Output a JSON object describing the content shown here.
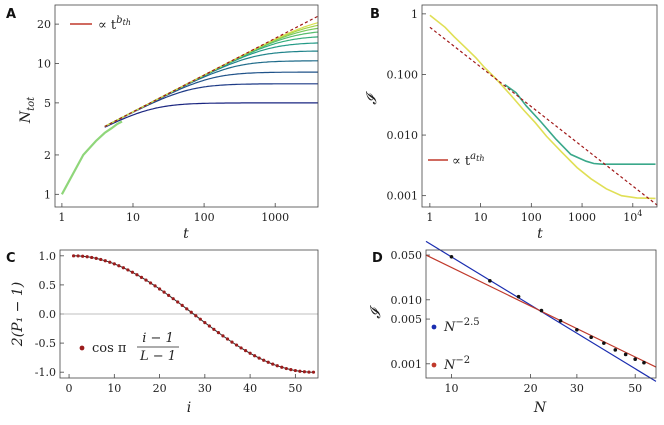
{
  "chart_data": [
    {
      "panel": "A",
      "type": "line",
      "xlabel": "t",
      "ylabel": "N_tot",
      "xscale": "log",
      "yscale": "log",
      "xlim": [
        0.8,
        4000
      ],
      "ylim": [
        0.8,
        28
      ],
      "xticks": [
        {
          "v": 1,
          "label": "1"
        },
        {
          "v": 10,
          "label": "10"
        },
        {
          "v": 100,
          "label": "100"
        },
        {
          "v": 1000,
          "label": "1000"
        }
      ],
      "yticks": [
        {
          "v": 1,
          "label": "1"
        },
        {
          "v": 2,
          "label": "2"
        },
        {
          "v": 5,
          "label": "5"
        },
        {
          "v": 10,
          "label": "10"
        },
        {
          "v": 20,
          "label": "20"
        }
      ],
      "legend": {
        "position": "top-left",
        "prefix": "∝ t",
        "exponent": "b",
        "exponent_sub": "th",
        "color": "#c0392b"
      },
      "fit": {
        "label": "∝ t^b_th",
        "color": "#a01818",
        "dashed": true,
        "x": [
          4,
          4000
        ],
        "y": [
          3.3,
          23
        ]
      },
      "init_curve": {
        "color": "#8fd67a",
        "x": [
          1,
          2,
          3,
          4,
          5,
          6,
          7
        ],
        "y": [
          1.0,
          2.0,
          2.55,
          2.95,
          3.2,
          3.45,
          3.6
        ]
      },
      "series": [
        {
          "name": "saturation 5.0",
          "color": "#1a2580",
          "plateau": 5.0
        },
        {
          "name": "saturation 7.0",
          "color": "#1d3a86",
          "plateau": 7.0
        },
        {
          "name": "saturation 8.6",
          "color": "#1f5289",
          "plateau": 8.6
        },
        {
          "name": "saturation 10.5",
          "color": "#1f6b8a",
          "plateau": 10.5
        },
        {
          "name": "saturation 12.5",
          "color": "#1f838a",
          "plateau": 12.5
        },
        {
          "name": "saturation 14.5",
          "color": "#239a86",
          "plateau": 14.5
        },
        {
          "name": "saturation 16.3",
          "color": "#35ad7b",
          "plateau": 16.3
        },
        {
          "name": "saturation 18.0",
          "color": "#56bd6d",
          "plateau": 18.0
        },
        {
          "name": "saturation 19.6",
          "color": "#7bca5c",
          "plateau": 19.6
        },
        {
          "name": "saturation 21.2",
          "color": "#a3d44b",
          "plateau": 21.2
        },
        {
          "name": "saturation 23.0",
          "color": "#d8df4e",
          "plateau": 23.0
        }
      ]
    },
    {
      "panel": "B",
      "type": "line",
      "xlabel": "t",
      "ylabel": "𝓘",
      "xscale": "log",
      "yscale": "log",
      "xlim": [
        0.7,
        30000
      ],
      "ylim": [
        0.00065,
        1.4
      ],
      "xticks": [
        {
          "v": 1,
          "label": "1"
        },
        {
          "v": 10,
          "label": "10"
        },
        {
          "v": 100,
          "label": "100"
        },
        {
          "v": 1000,
          "label": "1000"
        },
        {
          "v": 10000,
          "label": "10",
          "sup": "4"
        }
      ],
      "yticks": [
        {
          "v": 1,
          "label": "1"
        },
        {
          "v": 0.1,
          "label": "0.100"
        },
        {
          "v": 0.01,
          "label": "0.010"
        },
        {
          "v": 0.001,
          "label": "0.001"
        }
      ],
      "legend": {
        "position": "bottom-left",
        "prefix": "∝ t",
        "exponent": "a",
        "exponent_sub": "th",
        "color": "#c0392b"
      },
      "fit": {
        "color": "#a01818",
        "dashed": true,
        "x": [
          1,
          30000
        ],
        "y": [
          0.6,
          0.0007
        ]
      },
      "series": [
        {
          "name": "yellow",
          "color": "#e0df55",
          "x": [
            1,
            2,
            3,
            5,
            8,
            12,
            20,
            40,
            70,
            120,
            200,
            400,
            800,
            1500,
            3000,
            6000,
            12000,
            28000
          ],
          "y": [
            0.95,
            0.6,
            0.42,
            0.28,
            0.19,
            0.13,
            0.085,
            0.045,
            0.026,
            0.016,
            0.0095,
            0.0052,
            0.0029,
            0.0019,
            0.0013,
            0.001,
            0.00092,
            0.0009
          ]
        },
        {
          "name": "teal",
          "color": "#3aa88a",
          "x": [
            30,
            50,
            80,
            150,
            300,
            600,
            1200,
            1700,
            2500,
            5000,
            10000,
            28000
          ],
          "y": [
            0.068,
            0.05,
            0.03,
            0.017,
            0.0087,
            0.0048,
            0.0037,
            0.0034,
            0.0033,
            0.0033,
            0.0033,
            0.0033
          ]
        }
      ]
    },
    {
      "panel": "C",
      "type": "line",
      "xlabel": "i",
      "ylabel": "2(P₁ − 1)",
      "xscale": "linear",
      "yscale": "linear",
      "xlim": [
        -2,
        55
      ],
      "ylim": [
        -1.1,
        1.1
      ],
      "xticks": [
        {
          "v": 0,
          "label": "0"
        },
        {
          "v": 10,
          "label": "10"
        },
        {
          "v": 20,
          "label": "20"
        },
        {
          "v": 30,
          "label": "30"
        },
        {
          "v": 40,
          "label": "40"
        },
        {
          "v": 50,
          "label": "50"
        }
      ],
      "yticks": [
        {
          "v": 1,
          "label": "1.0"
        },
        {
          "v": 0.5,
          "label": "0.5"
        },
        {
          "v": 0,
          "label": "0.0"
        },
        {
          "v": -0.5,
          "label": "-0.5"
        },
        {
          "v": -1,
          "label": "-1.0"
        }
      ],
      "legend": {
        "position": "bottom-left",
        "text": "cos π",
        "frac_num": "i − 1",
        "frac_den": "L − 1",
        "marker_color": "#9b1c1c"
      },
      "L": 54,
      "line_color": "#2b2b2b",
      "marker_color": "#9b1c1c"
    },
    {
      "panel": "D",
      "type": "scatter",
      "xlabel": "N",
      "ylabel": "𝓘",
      "xscale": "log",
      "yscale": "log",
      "xlim": [
        8,
        60
      ],
      "ylim": [
        0.0006,
        0.06
      ],
      "xticks": [
        {
          "v": 10,
          "label": "10"
        },
        {
          "v": 20,
          "label": "20"
        },
        {
          "v": 30,
          "label": "30"
        },
        {
          "v": 50,
          "label": "50"
        }
      ],
      "yticks": [
        {
          "v": 0.05,
          "label": "0.050"
        },
        {
          "v": 0.01,
          "label": "0.010"
        },
        {
          "v": 0.005,
          "label": "0.005"
        },
        {
          "v": 0.001,
          "label": "0.001"
        }
      ],
      "points": {
        "color": "#111111",
        "x": [
          10,
          14,
          18,
          22,
          26,
          30,
          34,
          38,
          42,
          46,
          50,
          54
        ],
        "y": [
          0.047,
          0.0198,
          0.0112,
          0.0068,
          0.0047,
          0.0034,
          0.0026,
          0.0021,
          0.00165,
          0.0014,
          0.00118,
          0.00104
        ]
      },
      "fits": [
        {
          "name": "N^-2.5",
          "base": "N",
          "exponent": "−2.5",
          "color": "#1a2db0",
          "power": -2.5,
          "coef": 14.8
        },
        {
          "name": "N^-2",
          "base": "N",
          "exponent": "−2",
          "color": "#c0392b",
          "power": -2,
          "coef": 3.2
        }
      ],
      "legend": {
        "position": "bottom-left"
      }
    }
  ]
}
